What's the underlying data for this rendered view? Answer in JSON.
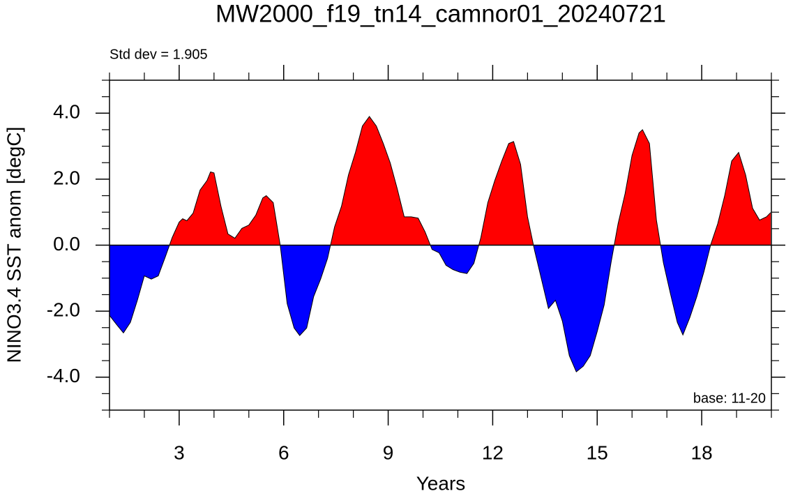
{
  "chart_data": {
    "type": "area",
    "title": "MW2000_f19_tn14_camnor01_20240721",
    "annotation_left": "Std dev = 1.905",
    "annotation_right": "base: 11-20",
    "xlabel": "Years",
    "ylabel": "NINO3.4 SST anom [degC]",
    "xlim": [
      1,
      20
    ],
    "ylim": [
      -5,
      5
    ],
    "xticks": [
      3,
      6,
      9,
      12,
      15,
      18
    ],
    "xminor": [
      1,
      2,
      4,
      5,
      7,
      8,
      10,
      11,
      13,
      14,
      16,
      17,
      19,
      20
    ],
    "yticks": [
      {
        "value": -4,
        "label": "-4.0"
      },
      {
        "value": -2,
        "label": "-2.0"
      },
      {
        "value": 0,
        "label": "0.0"
      },
      {
        "value": 2,
        "label": "2.0"
      },
      {
        "value": 4,
        "label": "4.0"
      }
    ],
    "yminor": [
      -5,
      -4.5,
      -3.5,
      -3,
      -2.5,
      -1.5,
      -1,
      -0.5,
      0.5,
      1,
      1.5,
      2.5,
      3,
      3.5,
      4.5,
      5
    ],
    "positive_color": "#ff0000",
    "negative_color": "#0000ff",
    "x": [
      1,
      1.2,
      1.4,
      1.6,
      1.8,
      2,
      2.2,
      2.4,
      2.6,
      2.8,
      3,
      3.1,
      3.22,
      3.4,
      3.6,
      3.8,
      3.9,
      4,
      4.2,
      4.4,
      4.6,
      4.8,
      5,
      5.2,
      5.4,
      5.5,
      5.7,
      5.9,
      6.1,
      6.3,
      6.46,
      6.66,
      6.86,
      7.06,
      7.26,
      7.46,
      7.66,
      7.86,
      8.06,
      8.26,
      8.46,
      8.66,
      8.86,
      9.06,
      9.26,
      9.46,
      9.66,
      9.86,
      10.06,
      10.26,
      10.46,
      10.66,
      10.86,
      11.06,
      11.26,
      11.46,
      11.66,
      11.86,
      12.06,
      12.26,
      12.46,
      12.6,
      12.8,
      13,
      13.2,
      13.4,
      13.6,
      13.8,
      14,
      14.2,
      14.4,
      14.6,
      14.8,
      15,
      15.2,
      15.4,
      15.6,
      15.8,
      16,
      16.2,
      16.3,
      16.5,
      16.7,
      16.9,
      17.1,
      17.3,
      17.46,
      17.66,
      17.86,
      18.06,
      18.26,
      18.46,
      18.66,
      18.86,
      19.06,
      19.26,
      19.46,
      19.66,
      19.86,
      19.98
    ],
    "values": [
      -2.13,
      -2.4,
      -2.66,
      -2.34,
      -1.67,
      -0.93,
      -1.03,
      -0.93,
      -0.36,
      0.23,
      0.7,
      0.8,
      0.74,
      0.97,
      1.67,
      1.96,
      2.22,
      2.19,
      1.18,
      0.34,
      0.21,
      0.51,
      0.61,
      0.91,
      1.43,
      1.5,
      1.29,
      0,
      -1.77,
      -2.51,
      -2.74,
      -2.51,
      -1.56,
      -1.03,
      -0.4,
      0.55,
      1.18,
      2.13,
      2.81,
      3.61,
      3.9,
      3.61,
      3.08,
      2.49,
      1.71,
      0.86,
      0.86,
      0.82,
      0.4,
      -0.13,
      -0.23,
      -0.61,
      -0.74,
      -0.82,
      -0.86,
      -0.55,
      0.23,
      1.29,
      1.96,
      2.55,
      3.08,
      3.14,
      2.45,
      0.86,
      -0.15,
      -1.03,
      -1.92,
      -1.67,
      -2.3,
      -3.35,
      -3.84,
      -3.67,
      -3.35,
      -2.62,
      -1.81,
      -0.51,
      0.65,
      1.56,
      2.72,
      3.4,
      3.5,
      3.08,
      0.76,
      -0.53,
      -1.46,
      -2.34,
      -2.72,
      -2.19,
      -1.56,
      -0.82,
      0.02,
      0.65,
      1.5,
      2.55,
      2.81,
      2.13,
      1.12,
      0.76,
      0.86,
      0.99
    ]
  }
}
